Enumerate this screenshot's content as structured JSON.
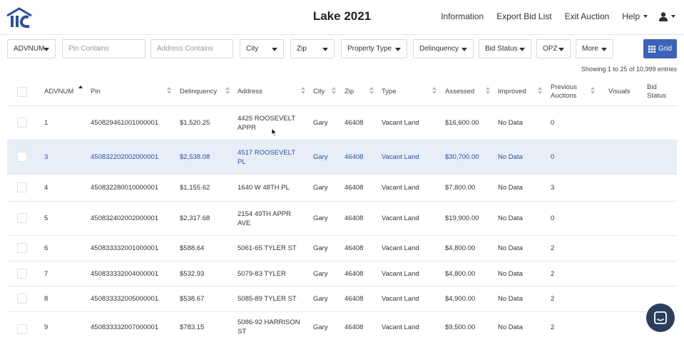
{
  "header": {
    "title": "Lake 2021",
    "nav": [
      "Information",
      "Export Bid List",
      "Exit Auction",
      "Help"
    ]
  },
  "filters": {
    "advnum": "ADVNUM",
    "pin_placeholder": "Pin Contains",
    "address_placeholder": "Address Contains",
    "city": "City",
    "zip": "Zip",
    "property_type": "Property Type",
    "delinquency": "Delinquency",
    "bid_status": "Bid Status",
    "opz": "OPZ",
    "more": "More",
    "grid": "Grid"
  },
  "showing": "Showing 1 to 25 of 10,999 entries",
  "columns": {
    "advnum": "ADVNUM",
    "pin": "Pin",
    "delinquency": "Delinquency",
    "address": "Address",
    "city": "City",
    "zip": "Zip",
    "type": "Type",
    "assessed": "Assessed",
    "improved": "Improved",
    "previous_auctions": "Previous Auctions",
    "visuals": "Visuals",
    "bid_status": "Bid Status"
  },
  "rows": [
    {
      "advnum": "1",
      "pin": "450829461001000001",
      "delinquency": "$1,520.25",
      "address": "4425 ROOSEVELT APPR",
      "city": "Gary",
      "zip": "46408",
      "type": "Vacant Land",
      "assessed": "$16,600.00",
      "improved": "No Data",
      "previous": "0"
    },
    {
      "advnum": "3",
      "pin": "450832202002000001",
      "delinquency": "$2,538.08",
      "address": "4517 ROOSEVELT PL",
      "city": "Gary",
      "zip": "46408",
      "type": "Vacant Land",
      "assessed": "$30,700.00",
      "improved": "No Data",
      "previous": "0"
    },
    {
      "advnum": "4",
      "pin": "450832280010000001",
      "delinquency": "$1,155.62",
      "address": "1640 W 48TH PL",
      "city": "Gary",
      "zip": "46408",
      "type": "Vacant Land",
      "assessed": "$7,800.00",
      "improved": "No Data",
      "previous": "3"
    },
    {
      "advnum": "5",
      "pin": "450832402002000001",
      "delinquency": "$2,317.68",
      "address": "2154 49TH APPR AVE",
      "city": "Gary",
      "zip": "46408",
      "type": "Vacant Land",
      "assessed": "$19,900.00",
      "improved": "No Data",
      "previous": "0"
    },
    {
      "advnum": "6",
      "pin": "450833332001000001",
      "delinquency": "$588.64",
      "address": "5061-65 TYLER ST",
      "city": "Gary",
      "zip": "46408",
      "type": "Vacant Land",
      "assessed": "$4,800.00",
      "improved": "No Data",
      "previous": "2"
    },
    {
      "advnum": "7",
      "pin": "450833332004000001",
      "delinquency": "$532.93",
      "address": "5079-83 TYLER",
      "city": "Gary",
      "zip": "46408",
      "type": "Vacant Land",
      "assessed": "$4,800.00",
      "improved": "No Data",
      "previous": "2"
    },
    {
      "advnum": "8",
      "pin": "450833332005000001",
      "delinquency": "$538.67",
      "address": "5085-89 TYLER ST",
      "city": "Gary",
      "zip": "46408",
      "type": "Vacant Land",
      "assessed": "$4,900.00",
      "improved": "No Data",
      "previous": "2"
    },
    {
      "advnum": "9",
      "pin": "450833332007000001",
      "delinquency": "$783.15",
      "address": "5086-92 HARRISON ST",
      "city": "Gary",
      "zip": "46408",
      "type": "Vacant Land",
      "assessed": "$9,500.00",
      "improved": "No Data",
      "previous": "2"
    }
  ],
  "colors": {
    "accent": "#3d63b8",
    "selected_row": "#e8eef8",
    "logo": "#2b4f9a",
    "chat": "#2b3f5c"
  }
}
